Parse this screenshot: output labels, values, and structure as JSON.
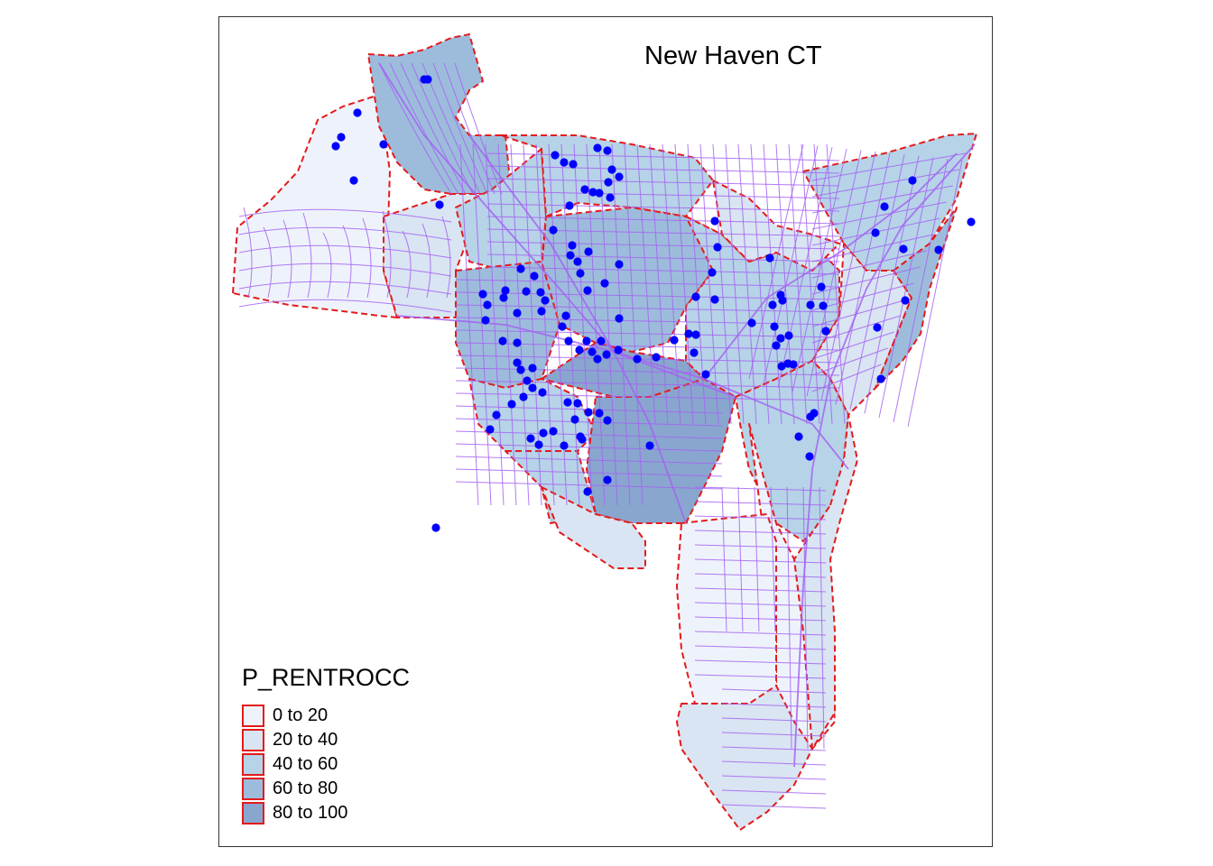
{
  "map": {
    "title": "New Haven CT",
    "legend": {
      "title": "P_RENTROCC",
      "classes": [
        {
          "label": "0 to 20",
          "color": "#eef3fb"
        },
        {
          "label": "20 to 40",
          "color": "#d9e5f2"
        },
        {
          "label": "40 to 60",
          "color": "#b6d3e8"
        },
        {
          "label": "60 to 80",
          "color": "#9dbcdc"
        },
        {
          "label": "80 to 100",
          "color": "#89a6cf"
        }
      ]
    },
    "colors": {
      "tract_border": "#e41a1c",
      "roads": "#a463f2",
      "points": "#0000ff",
      "frame": "#333333"
    },
    "layers": [
      "census-tracts",
      "roads",
      "point-locations"
    ]
  }
}
